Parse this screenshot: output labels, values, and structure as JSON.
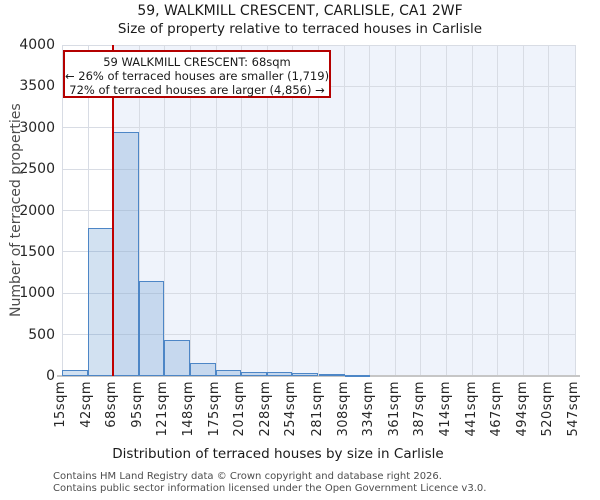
{
  "header": {
    "title": "59, WALKMILL CRESCENT, CARLISLE, CA1 2WF",
    "subtitle": "Size of property relative to terraced houses in Carlisle"
  },
  "annotation": {
    "line1": "59 WALKMILL CRESCENT: 68sqm",
    "line2": "← 26% of terraced houses are smaller (1,719)",
    "line3": "72% of terraced houses are larger (4,856) →"
  },
  "chart_data": {
    "type": "bar",
    "title": "59, WALKMILL CRESCENT, CARLISLE, CA1 2WF",
    "subtitle": "Size of property relative to terraced houses in Carlisle",
    "xlabel": "Distribution of terraced houses by size in Carlisle",
    "ylabel": "Number of terraced properties",
    "bin_edges": [
      15,
      42,
      68,
      95,
      121,
      148,
      175,
      201,
      228,
      254,
      281,
      308,
      334,
      361,
      387,
      414,
      441,
      467,
      494,
      520,
      547
    ],
    "xtick_labels": [
      "15sqm",
      "42sqm",
      "68sqm",
      "95sqm",
      "121sqm",
      "148sqm",
      "175sqm",
      "201sqm",
      "228sqm",
      "254sqm",
      "281sqm",
      "308sqm",
      "334sqm",
      "361sqm",
      "387sqm",
      "414sqm",
      "441sqm",
      "467sqm",
      "494sqm",
      "520sqm",
      "547sqm"
    ],
    "values": [
      70,
      1790,
      2950,
      1150,
      430,
      160,
      70,
      50,
      45,
      35,
      20,
      15,
      0,
      0,
      0,
      0,
      0,
      0,
      0,
      0
    ],
    "ylim": [
      0,
      4000
    ],
    "ytick_step": 500,
    "marker_value": 68,
    "grid": true,
    "legend": null
  },
  "footer": {
    "line1": "Contains HM Land Registry data © Crown copyright and database right 2026.",
    "line2": "Contains public sector information licensed under the Open Government Licence v3.0."
  },
  "colors": {
    "bar_fill": "#d6e2f4",
    "bar_edge": "#4d86c6",
    "marker_line": "#c00000",
    "annotation_border": "#b40000",
    "shaded_region": "#eff3fb",
    "gridline": "#d8dce4",
    "text": "#1a1a1a",
    "muted_text": "#4d4d4d"
  }
}
